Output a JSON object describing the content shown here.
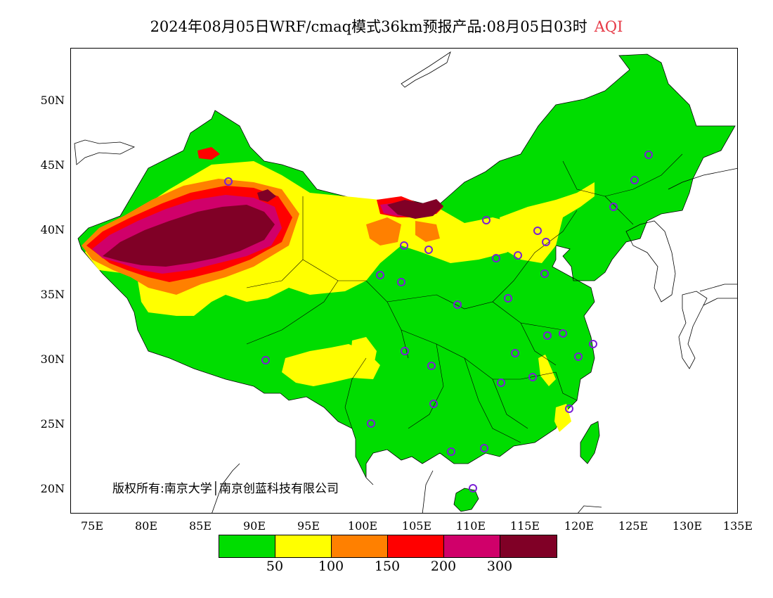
{
  "title": {
    "main": "2024年08月05日WRF/cmaq模式36km预报产品:08月05日03时",
    "variable": "AQI"
  },
  "axes": {
    "lat_ticks": [
      "50N",
      "45N",
      "40N",
      "35N",
      "30N",
      "25N",
      "20N"
    ],
    "lon_ticks": [
      "75E",
      "80E",
      "85E",
      "90E",
      "95E",
      "100E",
      "105E",
      "110E",
      "115E",
      "120E",
      "125E",
      "130E",
      "135E"
    ]
  },
  "copyright": "版权所有:南京大学│南京创蓝科技有限公司",
  "legend": {
    "colors": [
      "#00dd00",
      "#ffff00",
      "#ff8000",
      "#ff0000",
      "#d0006a",
      "#800026"
    ],
    "labels": [
      "50",
      "100",
      "150",
      "200",
      "300"
    ]
  },
  "colors": {
    "good": "#00dd00",
    "moderate": "#ffff00",
    "unhealthy_sensitive": "#ff8000",
    "unhealthy": "#ff0000",
    "very_unhealthy": "#d0006a",
    "hazardous": "#800026",
    "station_marker": "#7a1fd6"
  }
}
